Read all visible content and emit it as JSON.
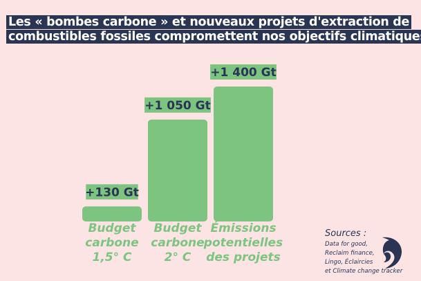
{
  "title": {
    "line1": "Les « bombes carbone » et nouveaux projets d'extraction de",
    "line2": "combustibles fossiles compromettent nos objectifs climatiques"
  },
  "chart_data": {
    "type": "bar",
    "categories": [
      "Budget\ncarbone\n1,5° C",
      "Budget\ncarbone\n2° C",
      "Émissions\npotentielles\ndes projets"
    ],
    "values": [
      130,
      1050,
      1400
    ],
    "value_labels": [
      "+130 Gt",
      "+1 050 Gt",
      "+1 400 Gt"
    ],
    "unit": "Gt",
    "ylim": [
      0,
      1400
    ],
    "grid": false,
    "bar_color": "#7cc47f",
    "label_color": "#2a3453"
  },
  "sources": {
    "heading": "Sources :",
    "body": "Data for good,\nReclaim finance,\nLingo, Éclaircies\net Climate change tracker"
  },
  "colors": {
    "background": "#fce4e4",
    "navy": "#2a3453",
    "green": "#7cc47f"
  },
  "logo": {
    "icon": "wave-logo-icon"
  }
}
